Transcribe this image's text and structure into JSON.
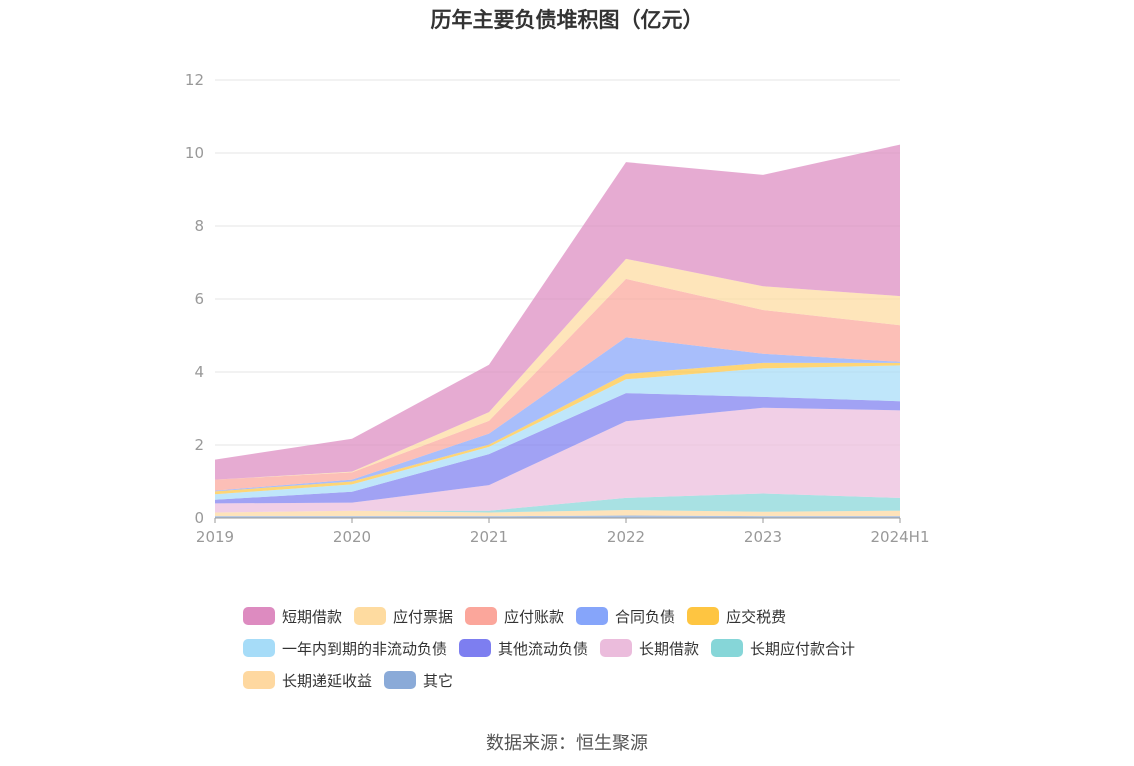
{
  "chart_data": {
    "type": "area",
    "stacked": true,
    "title": "历年主要负债堆积图（亿元）",
    "categories": [
      "2019",
      "2020",
      "2021",
      "2022",
      "2023",
      "2024H1"
    ],
    "ylim": [
      0,
      12
    ],
    "yticks": [
      0,
      2,
      4,
      6,
      8,
      10,
      12
    ],
    "grid": true,
    "legend_position": "bottom",
    "series": [
      {
        "name": "其它",
        "color": "#8aaad8",
        "values": [
          0.05,
          0.05,
          0.05,
          0.07,
          0.05,
          0.05
        ]
      },
      {
        "name": "长期递延收益",
        "color": "#fed8a0",
        "values": [
          0.1,
          0.15,
          0.1,
          0.15,
          0.12,
          0.15
        ]
      },
      {
        "name": "长期应付款合计",
        "color": "#86d6d8",
        "values": [
          0.0,
          0.0,
          0.05,
          0.33,
          0.5,
          0.35
        ]
      },
      {
        "name": "长期借款",
        "color": "#ebbcdc",
        "values": [
          0.25,
          0.22,
          0.7,
          2.1,
          2.35,
          2.4
        ]
      },
      {
        "name": "其他流动负债",
        "color": "#7d7ef0",
        "values": [
          0.1,
          0.3,
          0.85,
          0.77,
          0.3,
          0.25
        ]
      },
      {
        "name": "一年内到期的非流动负债",
        "color": "#a6dcf8",
        "values": [
          0.15,
          0.2,
          0.2,
          0.38,
          0.78,
          0.98
        ]
      },
      {
        "name": "应交税费",
        "color": "#fec541",
        "values": [
          0.08,
          0.08,
          0.06,
          0.15,
          0.15,
          0.07
        ]
      },
      {
        "name": "合同负债",
        "color": "#86a5fa",
        "values": [
          0.02,
          0.05,
          0.3,
          1.0,
          0.25,
          0.03
        ]
      },
      {
        "name": "应付账款",
        "color": "#fba69b",
        "values": [
          0.3,
          0.2,
          0.35,
          1.6,
          1.2,
          1.0
        ]
      },
      {
        "name": "应付票据",
        "color": "#fedba0",
        "values": [
          0.0,
          0.02,
          0.24,
          0.55,
          0.65,
          0.8
        ]
      },
      {
        "name": "短期借款",
        "color": "#dd8bc0",
        "values": [
          0.55,
          0.9,
          1.3,
          2.65,
          3.05,
          4.15
        ]
      }
    ]
  },
  "legend": {
    "rows": [
      [
        {
          "label": "短期借款",
          "color": "#dd8bc0"
        },
        {
          "label": "应付票据",
          "color": "#fedba0"
        },
        {
          "label": "应付账款",
          "color": "#fba69b"
        },
        {
          "label": "合同负债",
          "color": "#86a5fa"
        },
        {
          "label": "应交税费",
          "color": "#fec541"
        }
      ],
      [
        {
          "label": "一年内到期的非流动负债",
          "color": "#a6dcf8"
        },
        {
          "label": "其他流动负债",
          "color": "#7d7ef0"
        },
        {
          "label": "长期借款",
          "color": "#ebbcdc"
        },
        {
          "label": "长期应付款合计",
          "color": "#86d6d8"
        }
      ],
      [
        {
          "label": "长期递延收益",
          "color": "#fed8a0"
        },
        {
          "label": "其它",
          "color": "#8aaad8"
        }
      ]
    ]
  },
  "source": "数据来源：恒生聚源"
}
